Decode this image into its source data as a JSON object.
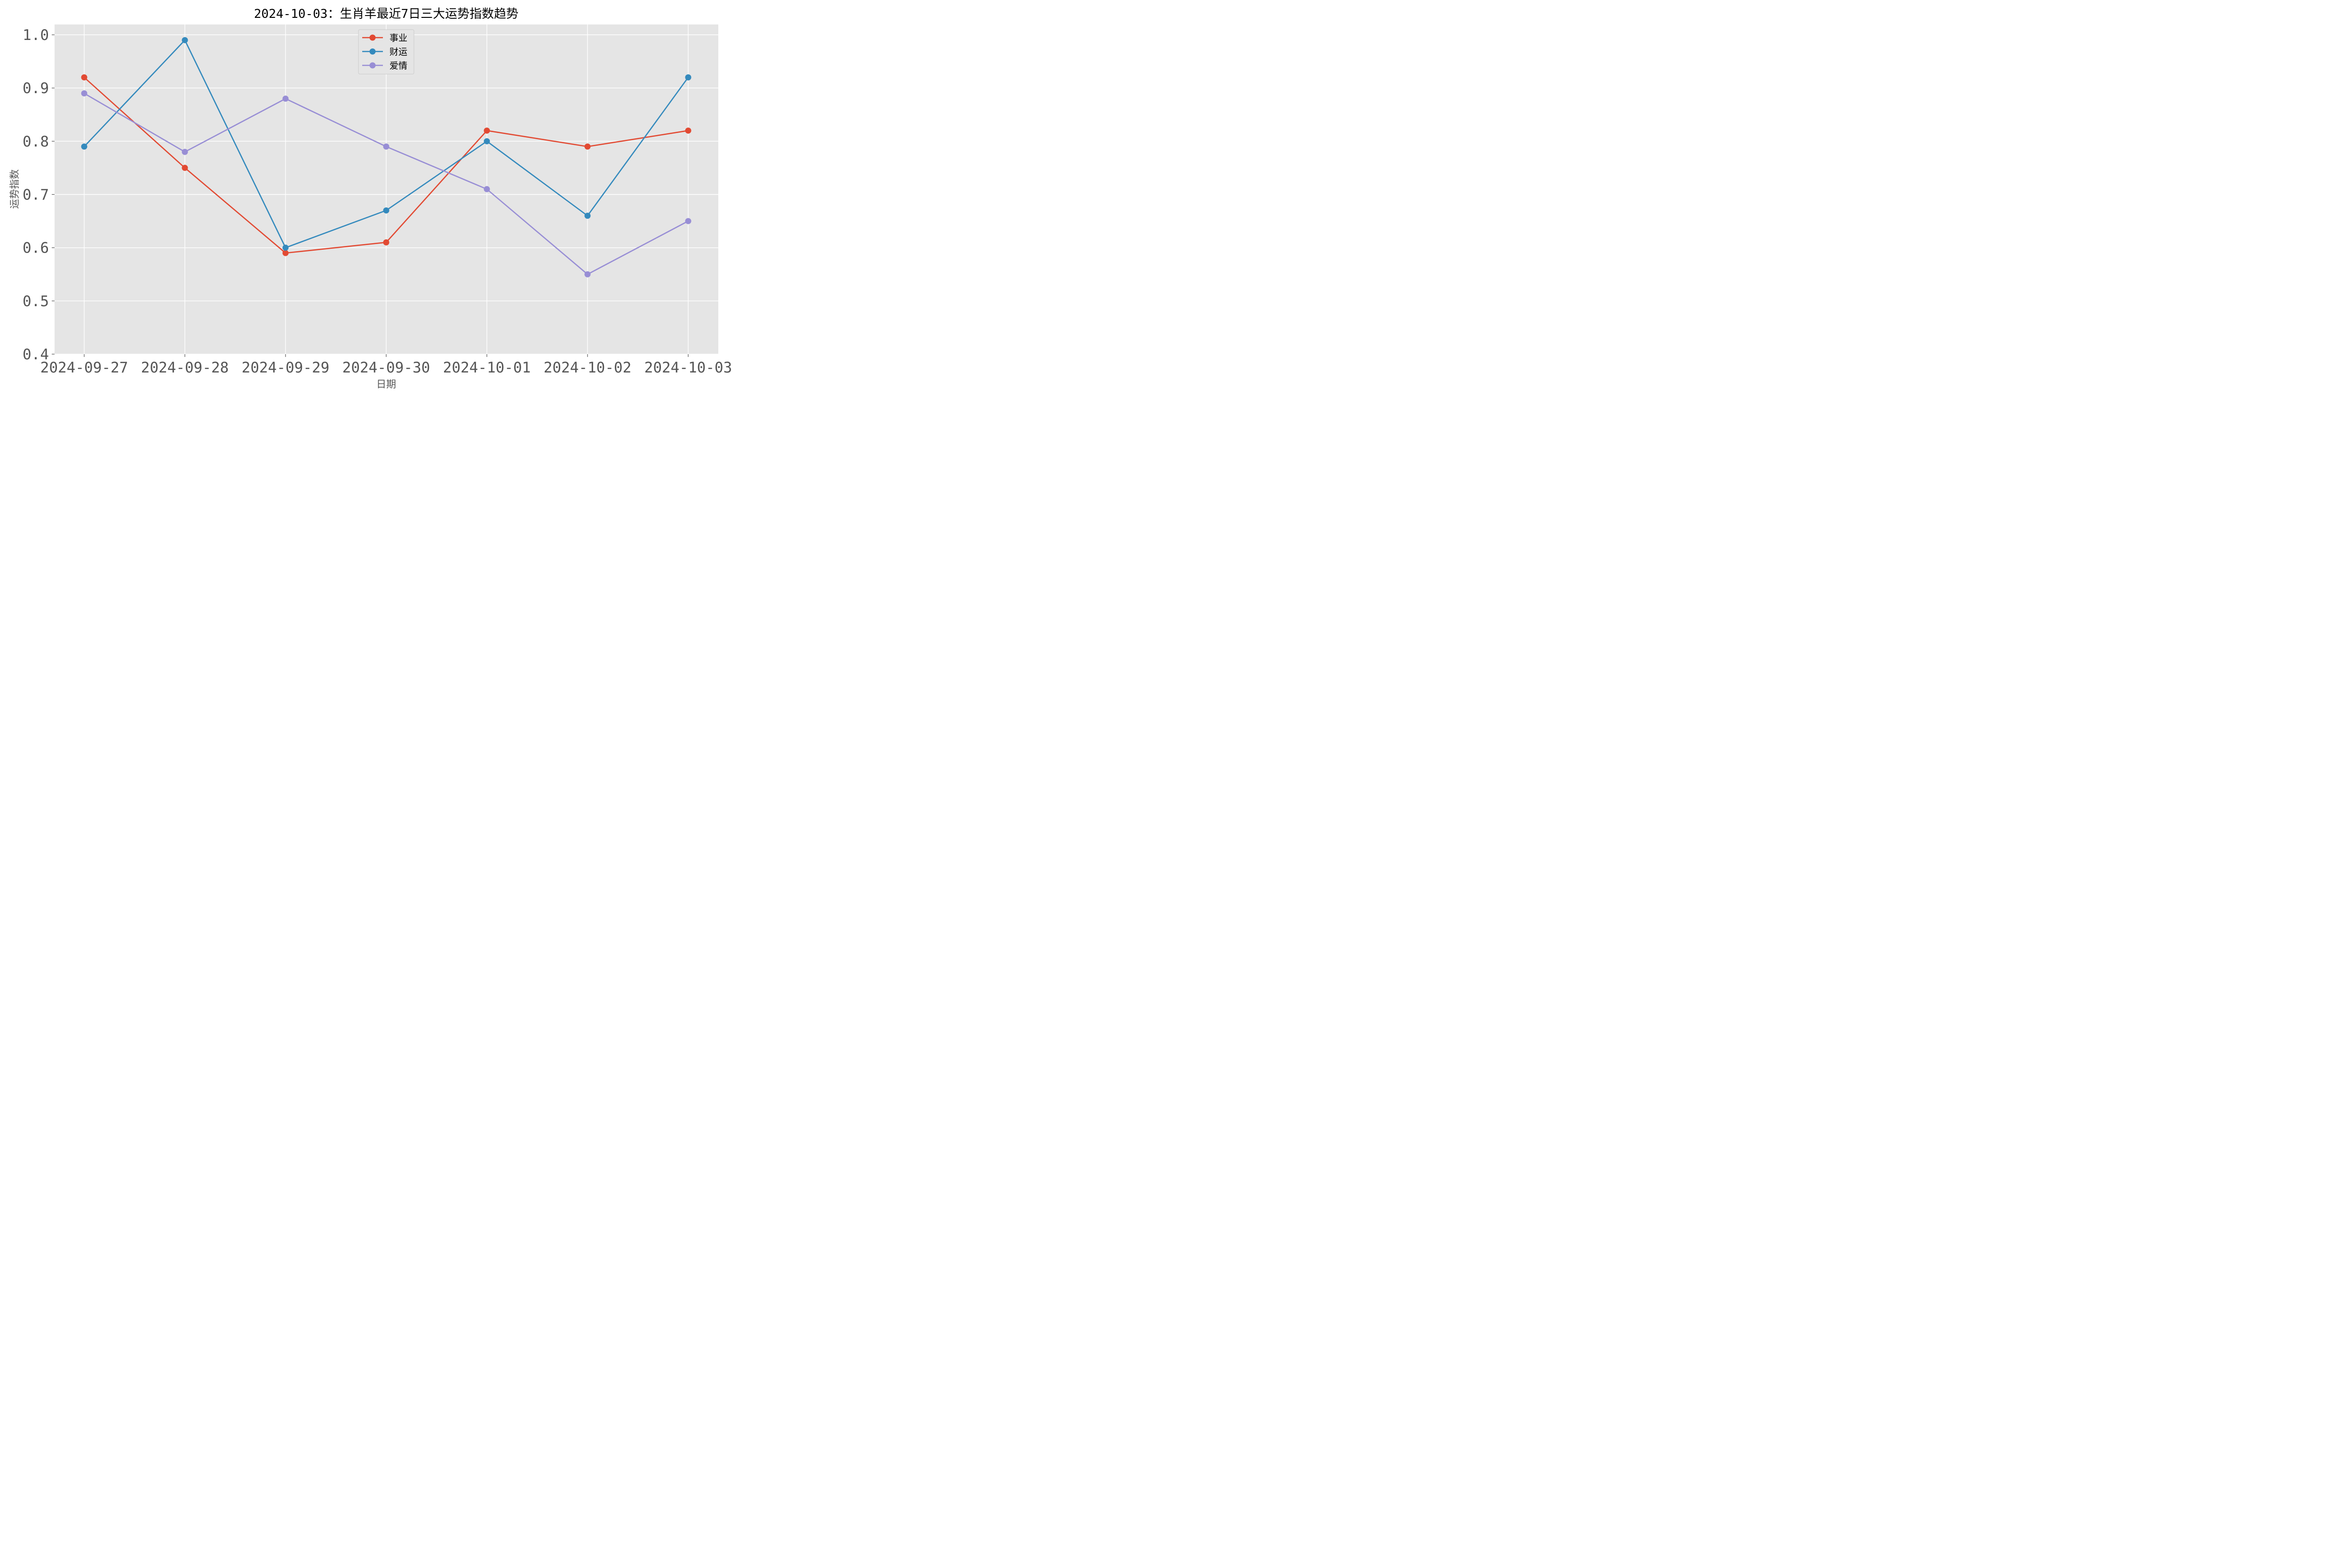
{
  "chart_data": {
    "type": "line",
    "title": "2024-10-03：生肖羊最近7日三大运势指数趋势",
    "xlabel": "日期",
    "ylabel": "运势指数",
    "categories": [
      "2024-09-27",
      "2024-09-28",
      "2024-09-29",
      "2024-09-30",
      "2024-10-01",
      "2024-10-02",
      "2024-10-03"
    ],
    "ylim": [
      0.4,
      1.0
    ],
    "yticks": [
      0.4,
      0.5,
      0.6,
      0.7,
      0.8,
      0.9,
      1.0
    ],
    "ytick_labels": [
      "0.4",
      "0.5",
      "0.6",
      "0.7",
      "0.8",
      "0.9",
      "1.0"
    ],
    "grid": true,
    "legend_position": "top-center",
    "series": [
      {
        "name": "事业",
        "color": "#E24A33",
        "values": [
          0.92,
          0.75,
          0.59,
          0.61,
          0.82,
          0.79,
          0.82
        ]
      },
      {
        "name": "财运",
        "color": "#348ABD",
        "values": [
          0.79,
          0.99,
          0.6,
          0.67,
          0.8,
          0.66,
          0.92
        ]
      },
      {
        "name": "爱情",
        "color": "#988ED5",
        "values": [
          0.89,
          0.78,
          0.88,
          0.79,
          0.71,
          0.55,
          0.65
        ]
      }
    ]
  }
}
